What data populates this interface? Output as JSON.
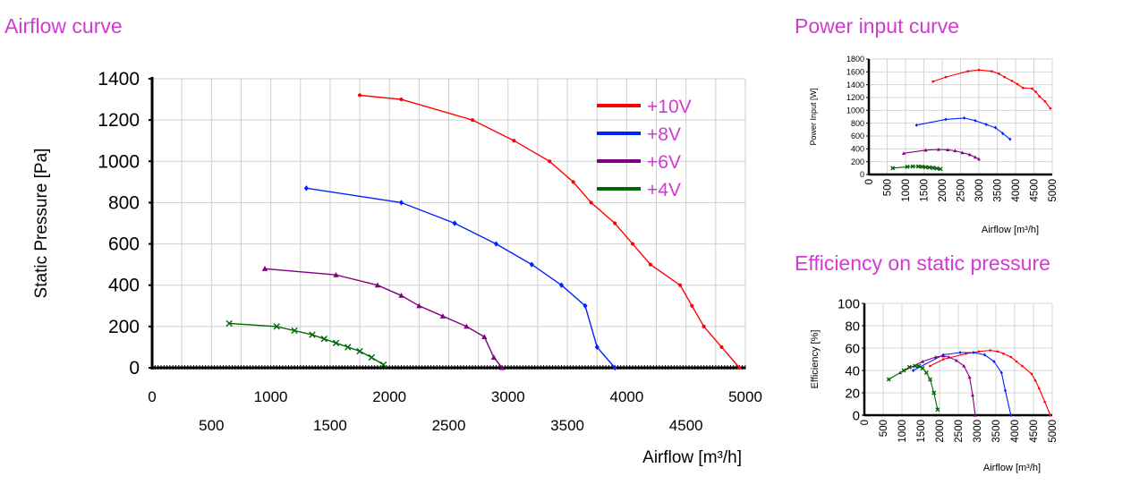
{
  "headings": {
    "airflow": "Airflow curve",
    "power": "Power input curve",
    "efficiency": "Efficiency on static pressure"
  },
  "colors": {
    "heading": "#d23ad2",
    "series": [
      "#ff0000",
      "#0022ff",
      "#800080",
      "#006600"
    ]
  },
  "chart_data": [
    {
      "type": "line",
      "title": "Airflow curve",
      "xlabel": "Airflow [m³/h]",
      "ylabel": "Static Pressure [Pa]",
      "xlim": [
        0,
        5000
      ],
      "ylim": [
        0,
        1400
      ],
      "grid": true,
      "legend_position": "top-right",
      "x_ticks": [
        0,
        500,
        1000,
        1500,
        2000,
        2500,
        3000,
        3500,
        4000,
        4500,
        5000
      ],
      "y_ticks": [
        0,
        200,
        400,
        600,
        800,
        1000,
        1200,
        1400
      ],
      "series": [
        {
          "name": "+10V",
          "color": "#ff0000",
          "marker": "dot",
          "x": [
            1750,
            2100,
            2700,
            3050,
            3350,
            3550,
            3700,
            3900,
            4050,
            4200,
            4450,
            4550,
            4650,
            4800,
            4950
          ],
          "y": [
            1320,
            1300,
            1200,
            1100,
            1000,
            900,
            800,
            700,
            600,
            500,
            400,
            300,
            200,
            100,
            0
          ]
        },
        {
          "name": "+8V",
          "color": "#0022ff",
          "marker": "diamond",
          "x": [
            1300,
            2100,
            2550,
            2900,
            3200,
            3450,
            3650,
            3750,
            3900
          ],
          "y": [
            870,
            800,
            700,
            600,
            500,
            400,
            300,
            100,
            0
          ]
        },
        {
          "name": "+6V",
          "color": "#800080",
          "marker": "triangle",
          "x": [
            950,
            1550,
            1900,
            2100,
            2250,
            2450,
            2650,
            2800,
            2880,
            2950
          ],
          "y": [
            480,
            450,
            400,
            350,
            300,
            250,
            200,
            150,
            50,
            0
          ]
        },
        {
          "name": "+4V",
          "color": "#006600",
          "marker": "cross",
          "x": [
            650,
            1050,
            1200,
            1350,
            1450,
            1550,
            1650,
            1750,
            1850,
            1950
          ],
          "y": [
            215,
            200,
            180,
            160,
            140,
            120,
            100,
            80,
            50,
            15
          ]
        }
      ]
    },
    {
      "type": "line",
      "title": "Power input curve",
      "xlabel": "Airflow  [m³/h]",
      "ylabel": "Power Input [W]",
      "xlim": [
        0,
        5000
      ],
      "ylim": [
        0,
        1800
      ],
      "grid": true,
      "x_ticks": [
        500,
        1000,
        1500,
        2000,
        2500,
        3000,
        3500,
        4000,
        4500,
        5000
      ],
      "y_ticks": [
        0,
        200,
        400,
        600,
        800,
        1000,
        1200,
        1400,
        1600,
        1800
      ],
      "series": [
        {
          "color": "#ff0000",
          "marker": "dot",
          "x": [
            1750,
            2100,
            2700,
            3000,
            3350,
            3550,
            3700,
            3900,
            4050,
            4200,
            4450,
            4550,
            4650,
            4800,
            4950
          ],
          "y": [
            1450,
            1520,
            1610,
            1630,
            1610,
            1570,
            1520,
            1460,
            1410,
            1350,
            1340,
            1290,
            1220,
            1140,
            1030
          ]
        },
        {
          "color": "#0022ff",
          "marker": "diamond",
          "x": [
            1300,
            2100,
            2600,
            2900,
            3200,
            3450,
            3650,
            3850
          ],
          "y": [
            770,
            860,
            880,
            840,
            780,
            730,
            640,
            550
          ]
        },
        {
          "color": "#800080",
          "marker": "triangle",
          "x": [
            950,
            1550,
            1900,
            2150,
            2350,
            2550,
            2750,
            2900,
            3000
          ],
          "y": [
            330,
            380,
            390,
            385,
            370,
            340,
            310,
            270,
            240
          ]
        },
        {
          "color": "#006600",
          "marker": "cross",
          "x": [
            650,
            1050,
            1200,
            1350,
            1450,
            1550,
            1650,
            1750,
            1850,
            1950
          ],
          "y": [
            100,
            120,
            125,
            125,
            120,
            115,
            110,
            105,
            95,
            85
          ]
        }
      ]
    },
    {
      "type": "line",
      "title": "Efficiency on static pressure",
      "xlabel": "Airflow  [m³/h]",
      "ylabel": "Efficiency  [%]",
      "xlim": [
        0,
        5000
      ],
      "ylim": [
        0,
        100
      ],
      "grid": true,
      "x_ticks": [
        500,
        1000,
        1500,
        2000,
        2500,
        3000,
        3500,
        4000,
        4500,
        5000
      ],
      "y_ticks": [
        0,
        20,
        40,
        60,
        80,
        100
      ],
      "series": [
        {
          "color": "#ff0000",
          "marker": "dot",
          "x": [
            1750,
            2100,
            2700,
            3050,
            3350,
            3550,
            3700,
            3900,
            4050,
            4200,
            4450,
            4550,
            4650,
            4800,
            4950
          ],
          "y": [
            44,
            50,
            55,
            57,
            58,
            57,
            55,
            52,
            48,
            44,
            37,
            31,
            24,
            12,
            0
          ]
        },
        {
          "color": "#0022ff",
          "marker": "diamond",
          "x": [
            1300,
            2100,
            2550,
            2900,
            3200,
            3450,
            3650,
            3750,
            3900
          ],
          "y": [
            40,
            54,
            56,
            56,
            54,
            48,
            38,
            22,
            0
          ]
        },
        {
          "color": "#800080",
          "marker": "triangle",
          "x": [
            950,
            1550,
            1900,
            2100,
            2250,
            2450,
            2650,
            2800,
            2880,
            2950
          ],
          "y": [
            38,
            48,
            52,
            53,
            52,
            49,
            44,
            34,
            18,
            0
          ]
        },
        {
          "color": "#006600",
          "marker": "cross",
          "x": [
            650,
            1050,
            1200,
            1350,
            1450,
            1550,
            1650,
            1750,
            1850,
            1950
          ],
          "y": [
            32,
            40,
            43,
            44,
            44,
            42,
            38,
            32,
            20,
            5
          ]
        }
      ]
    }
  ]
}
